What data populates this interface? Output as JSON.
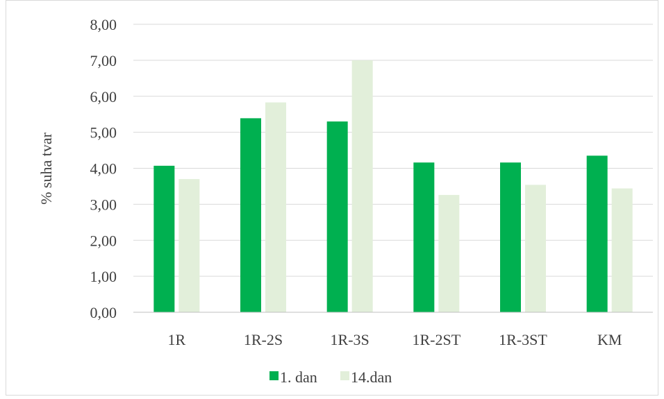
{
  "chart_data": {
    "type": "bar",
    "title": "",
    "xlabel": "",
    "ylabel": "% suha tvar",
    "ylim": [
      0,
      8
    ],
    "yticks": [
      "0,00",
      "1,00",
      "2,00",
      "3,00",
      "4,00",
      "5,00",
      "6,00",
      "7,00",
      "8,00"
    ],
    "ytick_values": [
      0,
      1,
      2,
      3,
      4,
      5,
      6,
      7,
      8
    ],
    "categories": [
      "1R",
      "1R-2S",
      "1R-3S",
      "1R-2ST",
      "1R-3ST",
      "KM"
    ],
    "series": [
      {
        "name": "1. dan",
        "color": "#00b050",
        "values": [
          4.07,
          5.39,
          5.3,
          4.16,
          4.16,
          4.35
        ]
      },
      {
        "name": "14.dan",
        "color": "#e2efda",
        "values": [
          3.7,
          5.83,
          7.0,
          3.26,
          3.54,
          3.44
        ]
      }
    ],
    "grid": true,
    "legend": "bottom"
  }
}
